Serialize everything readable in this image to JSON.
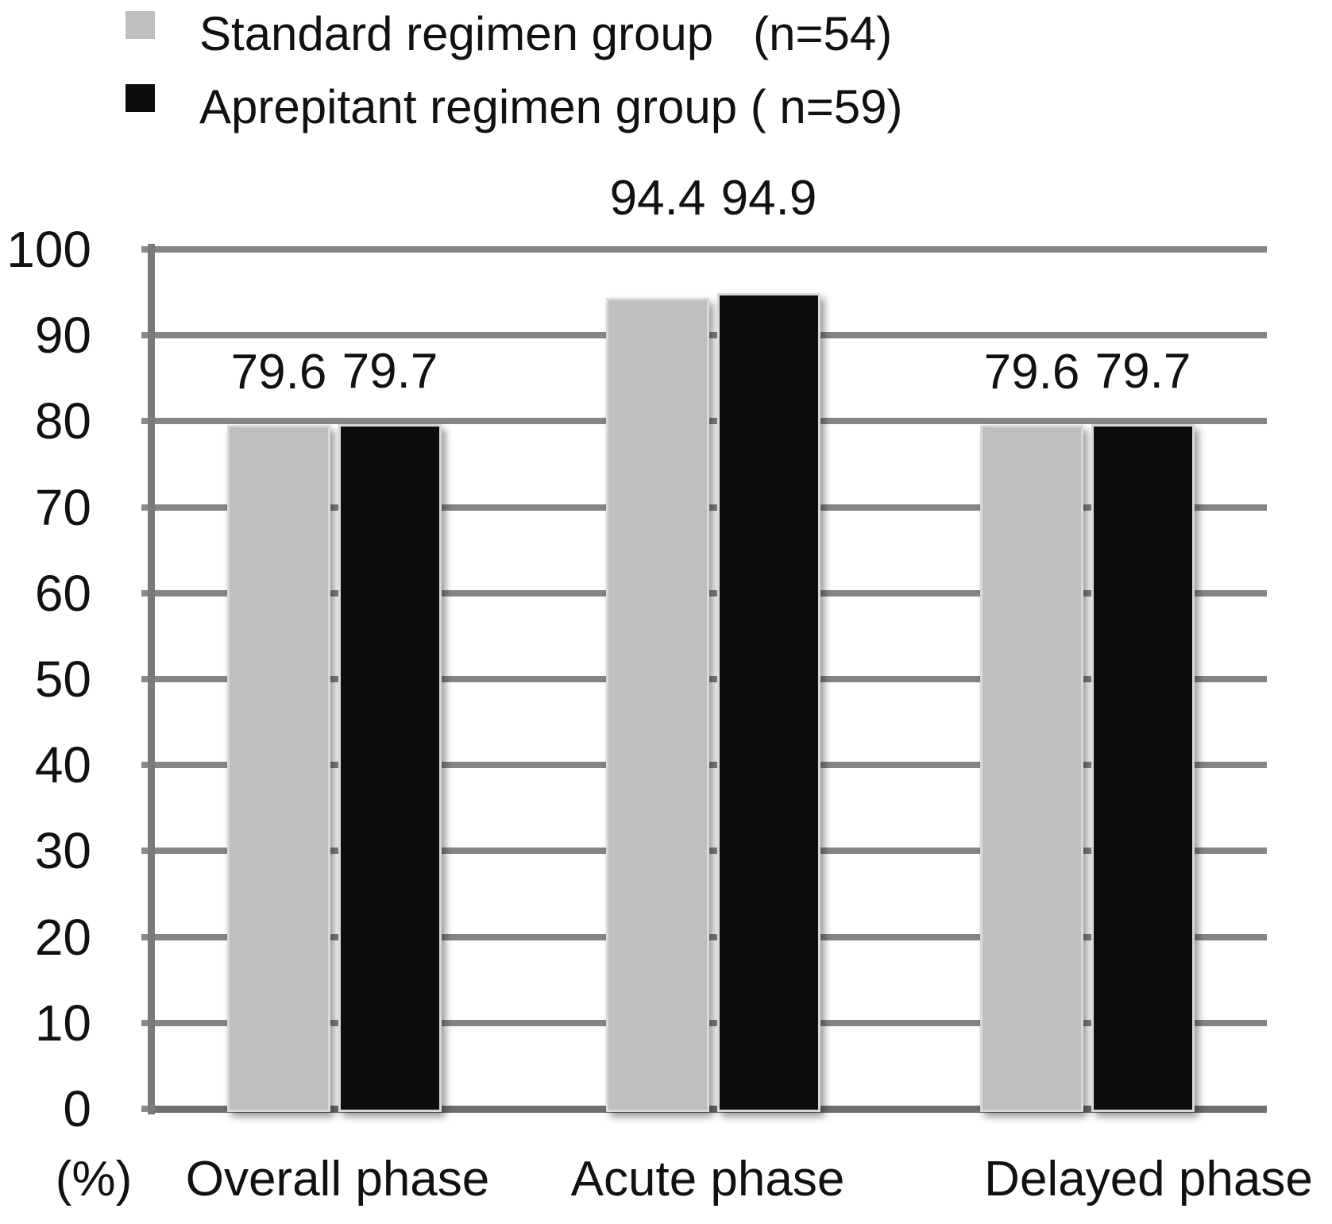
{
  "chart_data": {
    "type": "bar",
    "title": "",
    "categories": [
      "Overall phase",
      "Acute phase",
      "Delayed phase"
    ],
    "series": [
      {
        "name": "Standard regimen group   (n=54)",
        "color": "#bfbfbf",
        "values": [
          79.6,
          94.4,
          79.6
        ]
      },
      {
        "name": "Aprepitant regimen group ( n=59)",
        "color": "#0d0d0d",
        "values": [
          79.7,
          94.9,
          79.7
        ]
      }
    ],
    "bar_value_labels": [
      "79.6",
      "79.7",
      "94.4",
      "94.9",
      "79.6",
      "79.7"
    ],
    "xlabel": "",
    "ylabel": "(%)",
    "ylim": [
      0,
      100
    ],
    "ytick_step": 10,
    "yticks": [
      0,
      10,
      20,
      30,
      40,
      50,
      60,
      70,
      80,
      90,
      100
    ],
    "grid": "horizontal",
    "legend_position": "top-left"
  },
  "colors": {
    "background": "#ffffff",
    "gridline": "#858585",
    "axis": "#7a7a7a",
    "text": "#111111",
    "standard_series": "#bfbfbf",
    "aprepitant_series": "#0d0d0d"
  }
}
